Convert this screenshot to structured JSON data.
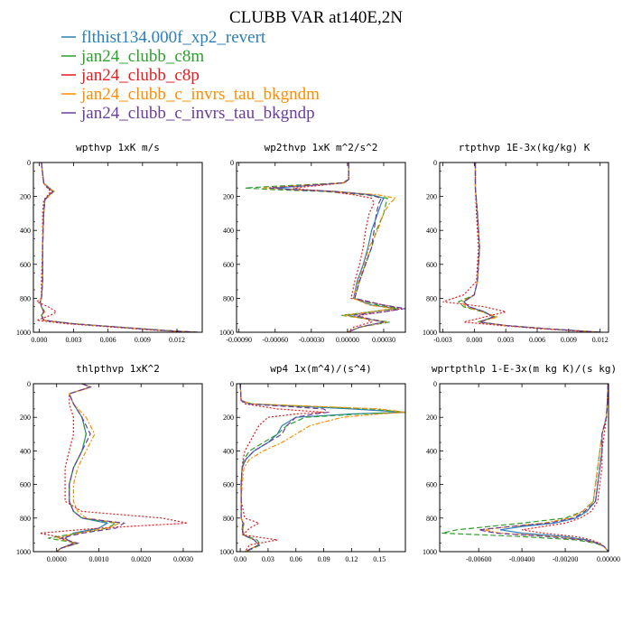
{
  "title": "CLUBB VAR at140E,2N",
  "legend": [
    {
      "label": "flthist134.000f_xp2_revert",
      "color": "#2a7fb8",
      "dash": ""
    },
    {
      "label": "jan24_clubb_c8m",
      "color": "#2ca02c",
      "dash": "6,3"
    },
    {
      "label": "jan24_clubb_c8p",
      "color": "#e41a1c",
      "dash": "2,2"
    },
    {
      "label": "jan24_clubb_c_invrs_tau_bkgndm",
      "color": "#ff8c00",
      "dash": "5,2,2,2"
    },
    {
      "label": "jan24_clubb_c_invrs_tau_bkgndp",
      "color": "#6a3d9a",
      "dash": "6,3"
    }
  ],
  "chart_data": [
    {
      "type": "line",
      "title": "wpthvp  1xK m/s",
      "xlim": [
        -0.0005,
        0.0142
      ],
      "ylim": [
        1000,
        0
      ],
      "xticks": [
        {
          "v": 0,
          "l": "0.000"
        },
        {
          "v": 0.003,
          "l": "0.003"
        },
        {
          "v": 0.006,
          "l": "0.006"
        },
        {
          "v": 0.009,
          "l": "0.009"
        },
        {
          "v": 0.012,
          "l": "0.012"
        }
      ],
      "yticks": [
        0,
        200,
        400,
        600,
        800,
        1000
      ],
      "y": [
        0,
        120,
        150,
        170,
        190,
        220,
        300,
        500,
        700,
        800,
        820,
        850,
        880,
        900,
        930,
        950,
        970,
        990,
        1000
      ],
      "series": [
        {
          "values": [
            0.0002,
            0.0004,
            0.0008,
            0.0012,
            0.0009,
            0.0005,
            0.0004,
            0.0003,
            0.0003,
            0.0002,
            0.0001,
            0.0002,
            0.0004,
            0.0002,
            0.0004,
            0.003,
            0.007,
            0.011,
            0.0138
          ]
        },
        {
          "values": [
            0.0002,
            0.0004,
            0.0009,
            0.0013,
            0.0009,
            0.0005,
            0.0004,
            0.0003,
            0.0003,
            0.0002,
            0.0001,
            0.0002,
            0.0005,
            0.0002,
            0.0005,
            0.003,
            0.007,
            0.011,
            0.0138
          ]
        },
        {
          "values": [
            0.0002,
            0.0004,
            0.0007,
            0.001,
            0.0008,
            0.0004,
            0.0003,
            0.0003,
            0.0002,
            0.0002,
            -0.0002,
            0.0008,
            0.0015,
            0.001,
            -0.0002,
            0.0025,
            0.0065,
            0.0105,
            0.0135
          ]
        },
        {
          "values": [
            0.0002,
            0.0004,
            0.0009,
            0.0013,
            0.001,
            0.0005,
            0.0004,
            0.0003,
            0.0003,
            0.0002,
            0.0001,
            0.0002,
            0.0005,
            0.0002,
            0.0005,
            0.003,
            0.007,
            0.011,
            0.0138
          ]
        },
        {
          "values": [
            0.0002,
            0.0004,
            0.0008,
            0.0012,
            0.0009,
            0.0005,
            0.0004,
            0.0003,
            0.0003,
            0.0002,
            0.0001,
            0.0002,
            0.0004,
            0.0002,
            0.0004,
            0.003,
            0.007,
            0.011,
            0.0138
          ]
        }
      ]
    },
    {
      "type": "line",
      "title": "wp2thvp  1xK m^2/s^2",
      "xlim": [
        -0.00092,
        0.00048
      ],
      "ylim": [
        1000,
        0
      ],
      "xticks": [
        {
          "v": -0.0009,
          "l": "-0.00090"
        },
        {
          "v": -0.0006,
          "l": "-0.00060"
        },
        {
          "v": -0.0003,
          "l": "-0.00030"
        },
        {
          "v": 0,
          "l": "0.00000"
        },
        {
          "v": 0.0003,
          "l": "0.00030"
        }
      ],
      "yticks": [
        0,
        200,
        400,
        600,
        800,
        1000
      ],
      "y": [
        0,
        100,
        120,
        140,
        150,
        160,
        170,
        190,
        210,
        240,
        300,
        400,
        500,
        600,
        700,
        800,
        840,
        860,
        880,
        900,
        940,
        970,
        1000
      ],
      "series": [
        {
          "values": [
            1e-05,
            1e-05,
            -3e-05,
            -0.0004,
            -0.0006,
            -0.0004,
            -0.0001,
            0.0002,
            0.0003,
            0.00028,
            0.00025,
            0.0002,
            0.00017,
            0.00013,
            8e-05,
            5e-05,
            0.0002,
            0.0004,
            0.0002,
            0.0,
            0.0003,
            0.0001,
            0.0
          ]
        },
        {
          "values": [
            1e-05,
            1e-05,
            -5e-05,
            -0.0006,
            -0.00085,
            -0.0006,
            -0.0002,
            0.00015,
            0.00033,
            0.00032,
            0.0003,
            0.00024,
            0.0002,
            0.00015,
            0.0001,
            6e-05,
            0.00025,
            0.00042,
            0.0002,
            -5e-05,
            0.00035,
            0.0001,
            0.0
          ]
        },
        {
          "values": [
            1e-05,
            1e-05,
            -3e-05,
            -0.0003,
            -0.00045,
            -0.00035,
            -0.00015,
            5e-05,
            0.0002,
            0.00022,
            0.00018,
            0.00015,
            0.00013,
            0.0001,
            6e-05,
            3e-05,
            0.0003,
            0.00045,
            0.0003,
            0.0001,
            0.0002,
            5e-05,
            0.0
          ]
        },
        {
          "values": [
            1e-05,
            1e-05,
            -4e-05,
            -0.0005,
            -0.0007,
            -0.00045,
            -0.00012,
            0.00025,
            0.0004,
            0.00035,
            0.0003,
            0.00025,
            0.00018,
            0.00014,
            9e-05,
            5e-05,
            0.00018,
            0.00038,
            0.0002,
            -3e-05,
            0.00032,
            0.0001,
            0.0
          ]
        },
        {
          "values": [
            1e-05,
            1e-05,
            -3e-05,
            -0.00045,
            -0.00065,
            -0.00045,
            -0.00012,
            0.00018,
            0.00028,
            0.00026,
            0.00024,
            0.00022,
            0.0002,
            0.00015,
            0.0001,
            6e-05,
            0.0003,
            0.00048,
            0.0003,
            5e-05,
            0.0003,
            0.0001,
            0.0
          ]
        }
      ]
    },
    {
      "type": "line",
      "title": "rtpthvp   1E-3x(kg/kg) K",
      "xlim": [
        -0.0033,
        0.0128
      ],
      "ylim": [
        1000,
        0
      ],
      "xticks": [
        {
          "v": -0.003,
          "l": "-0.003"
        },
        {
          "v": 0,
          "l": "0.000"
        },
        {
          "v": 0.003,
          "l": "0.003"
        },
        {
          "v": 0.006,
          "l": "0.006"
        },
        {
          "v": 0.009,
          "l": "0.009"
        },
        {
          "v": 0.012,
          "l": "0.012"
        }
      ],
      "yticks": [
        0,
        200,
        400,
        600,
        800,
        1000
      ],
      "y": [
        0,
        150,
        300,
        500,
        700,
        780,
        820,
        850,
        880,
        910,
        940,
        960,
        980,
        1000
      ],
      "series": [
        {
          "values": [
            0.0001,
            0.0001,
            0.0003,
            0.0005,
            0.0003,
            0.0,
            -0.001,
            -0.0005,
            0.001,
            0.0018,
            0.0005,
            0.003,
            0.007,
            0.012
          ]
        },
        {
          "values": [
            0.0001,
            0.0001,
            0.0003,
            0.0005,
            0.0003,
            0.0,
            -0.0015,
            -0.001,
            0.0008,
            0.002,
            0.0003,
            0.003,
            0.007,
            0.012
          ]
        },
        {
          "values": [
            0.0001,
            0.0001,
            0.0002,
            0.0004,
            0.0002,
            -0.001,
            -0.003,
            0.001,
            0.003,
            0.001,
            -0.001,
            0.0025,
            0.0065,
            0.0118
          ]
        },
        {
          "values": [
            0.0001,
            0.0001,
            0.0003,
            0.0005,
            0.0003,
            0.0,
            -0.0012,
            -0.0008,
            0.0008,
            0.0022,
            0.0005,
            0.003,
            0.007,
            0.012
          ]
        },
        {
          "values": [
            0.0001,
            0.0001,
            0.0003,
            0.0005,
            0.0003,
            0.0,
            -0.001,
            -0.0005,
            0.001,
            0.0018,
            0.0005,
            0.003,
            0.007,
            0.012
          ]
        }
      ]
    },
    {
      "type": "line",
      "title": "thlpthvp   1xK^2",
      "xlim": [
        -0.00055,
        0.00345
      ],
      "ylim": [
        1000,
        0
      ],
      "xticks": [
        {
          "v": 0,
          "l": "0.0000"
        },
        {
          "v": 0.001,
          "l": "0.0010"
        },
        {
          "v": 0.002,
          "l": "0.0020"
        },
        {
          "v": 0.003,
          "l": "0.0030"
        }
      ],
      "yticks": [
        0,
        200,
        400,
        600,
        800,
        1000
      ],
      "y": [
        0,
        20,
        60,
        120,
        200,
        300,
        400,
        500,
        600,
        700,
        760,
        800,
        830,
        860,
        890,
        920,
        950,
        980,
        1000
      ],
      "series": [
        {
          "values": [
            0.0006,
            0.0008,
            0.0003,
            0.0004,
            0.0006,
            0.0007,
            0.0006,
            0.0004,
            0.0003,
            0.0003,
            0.0004,
            0.0006,
            0.0012,
            0.001,
            0.0004,
            0.0002,
            0.0004,
            0.0001,
            0.0
          ]
        },
        {
          "values": [
            0.0006,
            0.0008,
            0.0003,
            0.0004,
            0.0006,
            0.0007,
            0.0006,
            0.0004,
            0.0003,
            0.0003,
            0.0004,
            0.0006,
            0.0014,
            0.0012,
            0.0005,
            -0.0002,
            0.0005,
            0.0001,
            0.0
          ]
        },
        {
          "values": [
            0.0006,
            0.0008,
            0.0003,
            0.0003,
            0.0004,
            0.0004,
            0.0003,
            0.0002,
            0.0002,
            0.0002,
            0.0006,
            0.0025,
            0.0031,
            0.001,
            -0.0004,
            0.0002,
            0.0004,
            0.0001,
            0.0
          ]
        },
        {
          "values": [
            0.0006,
            0.0008,
            0.0003,
            0.0004,
            0.0007,
            0.0009,
            0.0007,
            0.0005,
            0.0004,
            0.0004,
            0.0005,
            0.0007,
            0.0015,
            0.0012,
            0.0005,
            0.0,
            0.0005,
            0.0001,
            0.0
          ]
        },
        {
          "values": [
            0.0006,
            0.0008,
            0.0003,
            0.0004,
            0.0006,
            0.0008,
            0.0006,
            0.0004,
            0.0003,
            0.0003,
            0.0004,
            0.0006,
            0.0016,
            0.0014,
            0.0006,
            0.0001,
            0.0005,
            0.0001,
            0.0
          ]
        }
      ]
    },
    {
      "type": "line",
      "title": "wp4  1x(m^4)/(s^4)",
      "xlim": [
        -0.004,
        0.178
      ],
      "ylim": [
        1000,
        0
      ],
      "xticks": [
        {
          "v": 0,
          "l": "0.00"
        },
        {
          "v": 0.03,
          "l": "0.03"
        },
        {
          "v": 0.06,
          "l": "0.06"
        },
        {
          "v": 0.09,
          "l": "0.09"
        },
        {
          "v": 0.12,
          "l": "0.12"
        },
        {
          "v": 0.15,
          "l": "0.15"
        }
      ],
      "yticks": [
        0,
        200,
        400,
        600,
        800,
        1000
      ],
      "y": [
        0,
        100,
        120,
        150,
        170,
        180,
        200,
        250,
        300,
        350,
        400,
        450,
        500,
        600,
        700,
        800,
        830,
        860,
        900,
        930,
        960,
        1000
      ],
      "series": [
        {
          "values": [
            0,
            0.001,
            0.01,
            0.12,
            0.178,
            0.12,
            0.06,
            0.045,
            0.04,
            0.03,
            0.015,
            0.006,
            0.002,
            0.001,
            0.001,
            0.001,
            0.003,
            0.002,
            0.003,
            0.015,
            0.02,
            0.005
          ]
        },
        {
          "values": [
            0,
            0.001,
            0.012,
            0.14,
            0.178,
            0.13,
            0.07,
            0.05,
            0.04,
            0.025,
            0.01,
            0.004,
            0.002,
            0.001,
            0.001,
            0.001,
            0.004,
            0.003,
            0.004,
            0.018,
            0.022,
            0.006
          ]
        },
        {
          "values": [
            0,
            0.001,
            0.005,
            0.04,
            0.09,
            0.06,
            0.03,
            0.02,
            0.015,
            0.01,
            0.005,
            0.003,
            0.002,
            0.001,
            0.001,
            0.005,
            0.02,
            0.01,
            0.003,
            0.04,
            0.01,
            0.005
          ]
        },
        {
          "values": [
            0,
            0.001,
            0.012,
            0.15,
            0.178,
            0.15,
            0.11,
            0.075,
            0.06,
            0.045,
            0.025,
            0.01,
            0.004,
            0.002,
            0.001,
            0.001,
            0.004,
            0.003,
            0.004,
            0.015,
            0.02,
            0.005
          ]
        },
        {
          "values": [
            0,
            0.001,
            0.008,
            0.09,
            0.095,
            0.08,
            0.06,
            0.05,
            0.045,
            0.03,
            0.015,
            0.006,
            0.002,
            0.001,
            0.001,
            0.001,
            0.003,
            0.002,
            0.003,
            0.015,
            0.02,
            0.005
          ]
        }
      ]
    },
    {
      "type": "line",
      "title": "wprtpthlp   1-E-3x(m kg K)/(s kg)",
      "xlim": [
        -0.0078,
        0.0
      ],
      "ylim": [
        1000,
        0
      ],
      "xticks": [
        {
          "v": -0.006,
          "l": "-0.00600"
        },
        {
          "v": -0.004,
          "l": "-0.00400"
        },
        {
          "v": -0.002,
          "l": "-0.00200"
        },
        {
          "v": 0,
          "l": "0.00000"
        }
      ],
      "yticks": [
        0,
        200,
        400,
        600,
        800,
        1000
      ],
      "y": [
        0,
        100,
        200,
        300,
        400,
        500,
        600,
        700,
        760,
        800,
        830,
        850,
        870,
        890,
        910,
        930,
        950,
        970,
        1000
      ],
      "series": [
        {
          "values": [
            -2e-05,
            -5e-05,
            -0.0001,
            -0.0003,
            -0.0003,
            -0.0004,
            -0.0005,
            -0.0006,
            -0.001,
            -0.0015,
            -0.0025,
            -0.004,
            -0.005,
            -0.004,
            -0.002,
            -0.001,
            -0.0005,
            -0.0002,
            0.0
          ]
        },
        {
          "values": [
            -2e-05,
            -5e-05,
            -0.0001,
            -0.0003,
            -0.0004,
            -0.0005,
            -0.0006,
            -0.0007,
            -0.0012,
            -0.002,
            -0.004,
            -0.0055,
            -0.007,
            -0.0077,
            -0.004,
            -0.0015,
            -0.0006,
            -0.0002,
            0.0
          ]
        },
        {
          "values": [
            -2e-05,
            -5e-05,
            -0.0001,
            -0.0002,
            -0.0003,
            -0.0003,
            -0.0004,
            -0.0005,
            -0.0008,
            -0.0013,
            -0.002,
            -0.003,
            -0.004,
            -0.003,
            -0.0015,
            -0.0008,
            -0.0004,
            -0.0002,
            0.0
          ]
        },
        {
          "values": [
            -2e-05,
            -5e-05,
            -0.0001,
            -0.0003,
            -0.0004,
            -0.0005,
            -0.0006,
            -0.0007,
            -0.0012,
            -0.0018,
            -0.003,
            -0.0045,
            -0.0058,
            -0.005,
            -0.0025,
            -0.0012,
            -0.0005,
            -0.0002,
            0.0
          ]
        },
        {
          "values": [
            -2e-05,
            -5e-05,
            -0.0001,
            -0.0003,
            -0.0003,
            -0.0004,
            -0.0005,
            -0.0006,
            -0.0011,
            -0.0016,
            -0.0028,
            -0.0045,
            -0.006,
            -0.0052,
            -0.0028,
            -0.0012,
            -0.0005,
            -0.0002,
            0.0
          ]
        }
      ]
    }
  ]
}
